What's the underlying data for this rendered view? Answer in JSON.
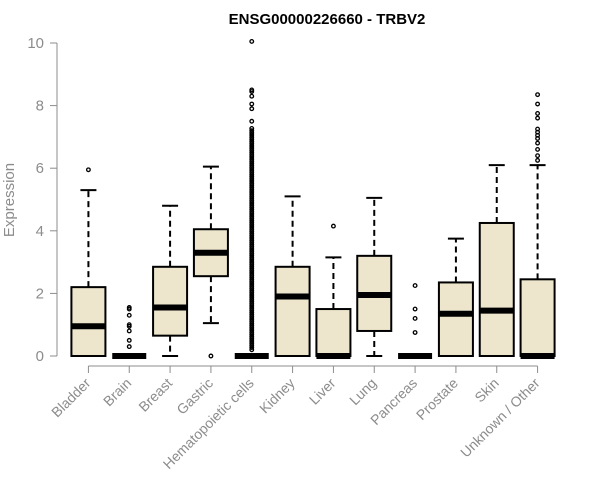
{
  "chart_data": {
    "type": "box",
    "title": "ENSG00000226660 - TRBV2",
    "ylabel": "Expression",
    "xlabel": "",
    "ylim": [
      0,
      10
    ],
    "yticks": [
      0,
      2,
      4,
      6,
      8,
      10
    ],
    "colors": {
      "box_fill": "#ede6cd",
      "stroke": "#000000",
      "axis": "#8c8c8c"
    },
    "categories": [
      "Bladder",
      "Brain",
      "Breast",
      "Gastric",
      "Hematopoietic cells",
      "Kidney",
      "Liver",
      "Lung",
      "Pancreas",
      "Prostate",
      "Skin",
      "Unknown / Other"
    ],
    "boxes": [
      {
        "whisker_low": 0,
        "q1": 0,
        "median": 0.95,
        "q3": 2.2,
        "whisker_high": 5.3,
        "outliers": [
          5.95
        ]
      },
      {
        "whisker_low": 0,
        "q1": 0,
        "median": 0,
        "q3": 0,
        "whisker_high": 0,
        "outliers": [
          0.3,
          0.5,
          0.8,
          0.95,
          1.0,
          1.3,
          1.5,
          1.55
        ]
      },
      {
        "whisker_low": 0,
        "q1": 0.65,
        "median": 1.55,
        "q3": 2.85,
        "whisker_high": 4.8,
        "outliers": []
      },
      {
        "whisker_low": 1.05,
        "q1": 2.55,
        "median": 3.3,
        "q3": 4.05,
        "whisker_high": 6.05,
        "outliers": [
          0
        ]
      },
      {
        "whisker_low": 0,
        "q1": 0,
        "median": 0,
        "q3": 0,
        "whisker_high": 0,
        "outliers_range": [
          0.2,
          7.3
        ],
        "outliers": [
          7.5,
          7.9,
          8.05,
          8.3,
          8.45,
          8.5,
          10.05
        ]
      },
      {
        "whisker_low": 0,
        "q1": 0,
        "median": 1.9,
        "q3": 2.85,
        "whisker_high": 5.1,
        "outliers": []
      },
      {
        "whisker_low": 0,
        "q1": 0,
        "median": 0,
        "q3": 1.5,
        "whisker_high": 3.15,
        "outliers": [
          4.15
        ]
      },
      {
        "whisker_low": 0,
        "q1": 0.8,
        "median": 1.95,
        "q3": 3.2,
        "whisker_high": 5.05,
        "outliers": []
      },
      {
        "whisker_low": 0,
        "q1": 0,
        "median": 0,
        "q3": 0,
        "whisker_high": 0,
        "outliers": [
          0.75,
          1.2,
          1.5,
          2.25
        ]
      },
      {
        "whisker_low": 0,
        "q1": 0,
        "median": 1.35,
        "q3": 2.35,
        "whisker_high": 3.75,
        "outliers": []
      },
      {
        "whisker_low": 0,
        "q1": 0,
        "median": 1.45,
        "q3": 4.25,
        "whisker_high": 6.1,
        "outliers": []
      },
      {
        "whisker_low": 0,
        "q1": 0,
        "median": 0,
        "q3": 2.45,
        "whisker_high": 6.1,
        "outliers": [
          6.25,
          6.4,
          6.6,
          6.8,
          6.95,
          7.05,
          7.15,
          7.25,
          7.6,
          7.75,
          8.05,
          8.35
        ]
      }
    ]
  }
}
